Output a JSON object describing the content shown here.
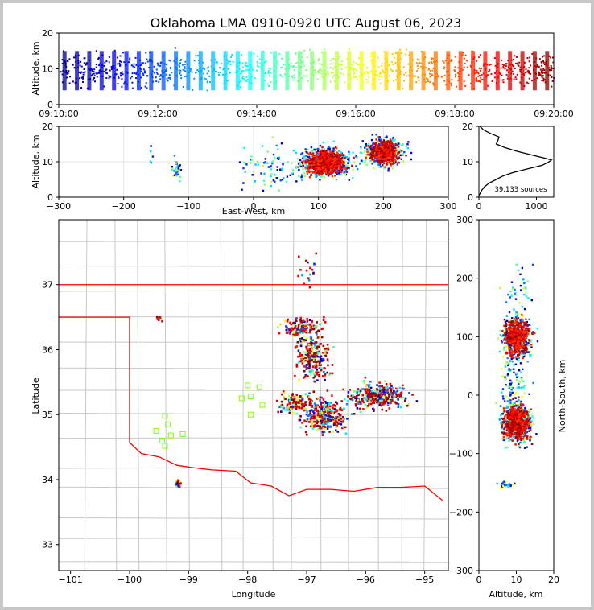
{
  "title": "Oklahoma LMA 0910-0920 UTC August 06, 2023",
  "chart_data": [
    {
      "type": "scatter",
      "name": "time-height",
      "xlabel": "",
      "ylabel": "Altitude, km",
      "xticks": [
        "09:10:00",
        "09:12:00",
        "09:14:00",
        "09:16:00",
        "09:18:00",
        "09:20:00"
      ],
      "yticks": [
        0,
        10,
        20
      ],
      "xlim": [
        "09:10:00",
        "09:20:00"
      ],
      "ylim": [
        0,
        20
      ],
      "colormap": "jet",
      "density_profile": [
        0.55,
        0.7,
        0.75,
        0.6,
        0.7,
        0.5,
        0.8,
        0.6,
        0.75,
        0.5,
        0.45,
        0.55,
        0.4,
        0.45,
        0.55,
        0.5,
        0.5,
        0.4,
        0.45,
        0.55,
        0.5,
        0.45,
        0.6,
        0.5,
        0.45,
        0.55,
        0.6,
        0.55,
        0.5,
        0.6,
        0.5,
        0.6,
        0.55,
        0.65,
        0.6,
        0.5,
        0.75,
        0.7,
        0.8,
        0.9
      ]
    },
    {
      "type": "scatter",
      "name": "east-west-altitude",
      "xlabel": "East-West, km",
      "ylabel": "Altitude, km",
      "xticks": [
        -300,
        -200,
        -100,
        0,
        100,
        200,
        300
      ],
      "yticks": [
        0,
        10,
        20
      ],
      "xlim": [
        -300,
        300
      ],
      "ylim": [
        0,
        20
      ],
      "clusters": [
        {
          "x": 110,
          "y": 10,
          "sx": 40,
          "sy": 4,
          "n": 1800
        },
        {
          "x": 200,
          "y": 13,
          "sx": 30,
          "sy": 4,
          "n": 1400
        },
        {
          "x": -120,
          "y": 8,
          "sx": 6,
          "sy": 3,
          "n": 150
        },
        {
          "x": -160,
          "y": 12,
          "sx": 4,
          "sy": 3,
          "n": 20
        },
        {
          "x": 20,
          "y": 9,
          "sx": 40,
          "sy": 6,
          "n": 300
        }
      ]
    },
    {
      "type": "line",
      "name": "altitude-histogram",
      "xlabel": "",
      "ylabel": "",
      "xticks": [
        0,
        1000
      ],
      "yticks": [
        0,
        10,
        20
      ],
      "xlim": [
        0,
        1300
      ],
      "ylim": [
        0,
        20
      ],
      "annotation": "39,133 sources",
      "profile": [
        [
          0,
          0.5
        ],
        [
          20,
          1
        ],
        [
          50,
          2
        ],
        [
          100,
          3
        ],
        [
          180,
          4
        ],
        [
          300,
          5
        ],
        [
          420,
          6
        ],
        [
          600,
          7
        ],
        [
          850,
          8
        ],
        [
          1100,
          9
        ],
        [
          1220,
          10
        ],
        [
          1260,
          10.5
        ],
        [
          1150,
          11
        ],
        [
          900,
          12
        ],
        [
          650,
          13
        ],
        [
          450,
          14
        ],
        [
          300,
          15
        ],
        [
          330,
          16
        ],
        [
          350,
          17
        ],
        [
          200,
          18
        ],
        [
          80,
          19
        ],
        [
          20,
          20
        ]
      ]
    },
    {
      "type": "scatter",
      "name": "plan-view-map",
      "xlabel": "Longitude",
      "ylabel": "Latitude",
      "xticks": [
        -101,
        -100,
        -99,
        -98,
        -97,
        -96,
        -95
      ],
      "yticks": [
        33,
        34,
        35,
        36,
        37
      ],
      "xlim": [
        -101.2,
        -94.6
      ],
      "ylim": [
        32.6,
        38
      ],
      "stations": [
        [
          -98,
          35.45
        ],
        [
          -97.8,
          35.42
        ],
        [
          -98.1,
          35.25
        ],
        [
          -97.95,
          35.28
        ],
        [
          -97.75,
          35.15
        ],
        [
          -97.95,
          35.0
        ],
        [
          -99.4,
          34.98
        ],
        [
          -99.55,
          34.75
        ],
        [
          -99.35,
          34.85
        ],
        [
          -99.3,
          34.68
        ],
        [
          -99.45,
          34.6
        ],
        [
          -99.4,
          34.52
        ],
        [
          -99.1,
          34.7
        ]
      ]
    },
    {
      "type": "scatter",
      "name": "north-south-altitude",
      "xlabel": "Altitude, km",
      "ylabel": "North-South, km",
      "xticks": [
        0,
        10,
        20
      ],
      "yticks": [
        -300,
        -200,
        -100,
        0,
        100,
        200,
        300
      ],
      "xlim": [
        0,
        20
      ],
      "ylim": [
        -300,
        300
      ],
      "clusters": [
        {
          "y": 100,
          "x": 10,
          "sy": 35,
          "sx": 4,
          "n": 1400
        },
        {
          "y": -45,
          "x": 10,
          "sy": 35,
          "sx": 4,
          "n": 1600
        },
        {
          "y": 20,
          "x": 9,
          "sy": 60,
          "sx": 4,
          "n": 400
        },
        {
          "y": 180,
          "x": 10,
          "sy": 40,
          "sx": 4,
          "n": 150
        },
        {
          "y": -152,
          "x": 7,
          "sy": 6,
          "sx": 3,
          "n": 90
        }
      ]
    }
  ],
  "colors": {
    "state_border": "#ff0000",
    "county_lines": "#c8c8c8",
    "station_marker": "#7fff00",
    "axis": "#000000"
  }
}
